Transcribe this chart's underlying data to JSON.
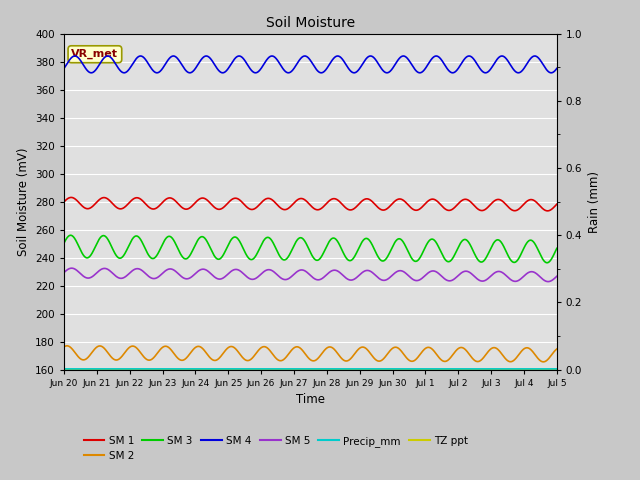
{
  "title": "Soil Moisture",
  "xlabel": "Time",
  "ylabel_left": "Soil Moisture (mV)",
  "ylabel_right": "Rain (mm)",
  "ylim_left": [
    160,
    400
  ],
  "ylim_right": [
    0.0,
    1.0
  ],
  "yticks_left": [
    160,
    180,
    200,
    220,
    240,
    260,
    280,
    300,
    320,
    340,
    360,
    380,
    400
  ],
  "yticks_right": [
    0.0,
    0.2,
    0.4,
    0.6,
    0.8,
    1.0
  ],
  "fig_bg_color": "#c8c8c8",
  "plot_bg_color": "#e0e0e0",
  "annotation_text": "VR_met",
  "annotation_color": "#880000",
  "annotation_bg": "#ffffcc",
  "annotation_edge": "#999900",
  "sm4_color": "#0000dd",
  "sm1_color": "#dd0000",
  "sm3_color": "#00cc00",
  "sm5_color": "#9933cc",
  "sm2_color": "#dd8800",
  "precip_color": "#00cccc",
  "tz_color": "#cccc00",
  "x_tick_labels": [
    "Jun 20",
    "Jun 21",
    "Jun 22",
    "Jun 23",
    "Jun 24",
    "Jun 25",
    "Jun 26",
    "Jun 27",
    "Jun 28",
    "Jun 29",
    "Jun 30",
    "Jul 1",
    "Jul 2",
    "Jul 3",
    "Jul 4",
    "Jul 5"
  ],
  "grid_color": "#ffffff",
  "line_width": 1.2
}
